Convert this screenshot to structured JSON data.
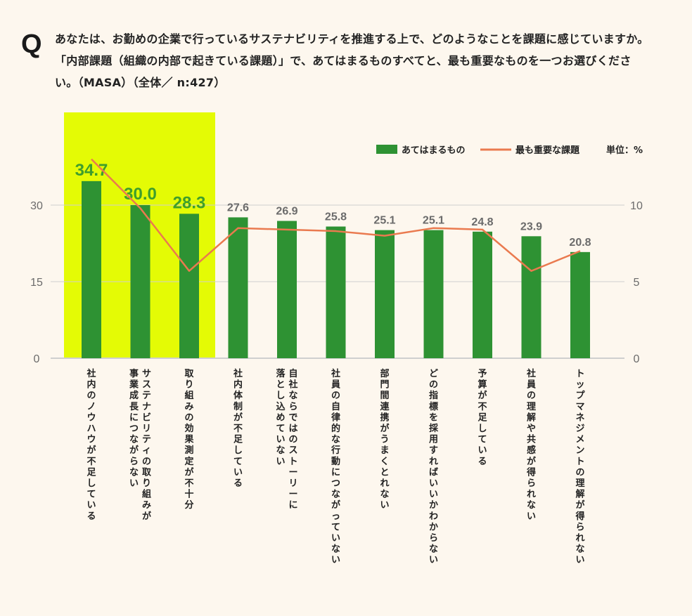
{
  "question": {
    "mark": "Q",
    "text": "あなたは、お勤めの企業で行っているサステナビリティを推進する上で、どのようなことを課題に感じていますか。「内部課題（組織の内部で起きている課題）」で、あてはまるものすべてと、最も重要なものを一つお選びください。（MASA）（全体／ n:427）"
  },
  "chart_data": {
    "type": "bar",
    "legend": {
      "bar_label": "あてはまるもの",
      "line_label": "最も重要な課題",
      "unit_label": "単位：%",
      "placement": "top-right"
    },
    "categories": [
      "社内のノウハウが不足している",
      "サステナビリティの取り組みが事業成長につながらない",
      "取り組みの効果測定が不十分",
      "社内体制が不足している",
      "自社ならではのストーリーに落とし込めていない",
      "社員の自律的な行動につながっていない",
      "部門間連携がうまくとれない",
      "どの指標を採用すればいいかわからない",
      "予算が不足している",
      "社員の理解や共感が得られない",
      "トップマネジメントの理解が得られない"
    ],
    "category_lines": [
      [
        "社内のノウハウが不足している"
      ],
      [
        "サステナビリティの取り組みが",
        "事業成長につながらない"
      ],
      [
        "取り組みの効果測定が不十分"
      ],
      [
        "社内体制が不足している"
      ],
      [
        "自社ならではのストーリーに",
        "落とし込めていない"
      ],
      [
        "社員の自律的な行動につながっていない"
      ],
      [
        "部門間連携がうまくとれない"
      ],
      [
        "どの指標を採用すればいいかわからない"
      ],
      [
        "予算が不足している"
      ],
      [
        "社員の理解や共感が得られない"
      ],
      [
        "トップマネジメントの理解が得られない"
      ]
    ],
    "series": [
      {
        "name": "あてはまるもの",
        "kind": "bar",
        "axis": "left",
        "values": [
          34.7,
          30.0,
          28.3,
          27.6,
          26.9,
          25.8,
          25.1,
          25.1,
          24.8,
          23.9,
          20.8
        ],
        "labels": [
          "34.7",
          "30.0",
          "28.3",
          "27.6",
          "26.9",
          "25.8",
          "25.1",
          "25.1",
          "24.8",
          "23.9",
          "20.8"
        ]
      },
      {
        "name": "最も重要な課題",
        "kind": "line",
        "axis": "right",
        "values": [
          13.0,
          9.8,
          5.7,
          8.5,
          8.4,
          8.3,
          8.0,
          8.5,
          8.4,
          5.7,
          7.0
        ]
      }
    ],
    "highlight_count": 3,
    "y_left": {
      "ticks": [
        0,
        15,
        30
      ],
      "tick_labels": [
        "0",
        "15",
        "30"
      ],
      "range": [
        0,
        30
      ]
    },
    "y_right": {
      "ticks": [
        0,
        5,
        10
      ],
      "tick_labels": [
        "0",
        "5",
        "10"
      ],
      "range": [
        0,
        10
      ]
    },
    "grid": true,
    "colors": {
      "bar": "#2e9233",
      "line": "#ea7a4f",
      "highlight": "#e4fb05",
      "highlight_label": "#3f9e2c",
      "label": "#6b6b6b",
      "grid": "#cfcfcf"
    }
  }
}
